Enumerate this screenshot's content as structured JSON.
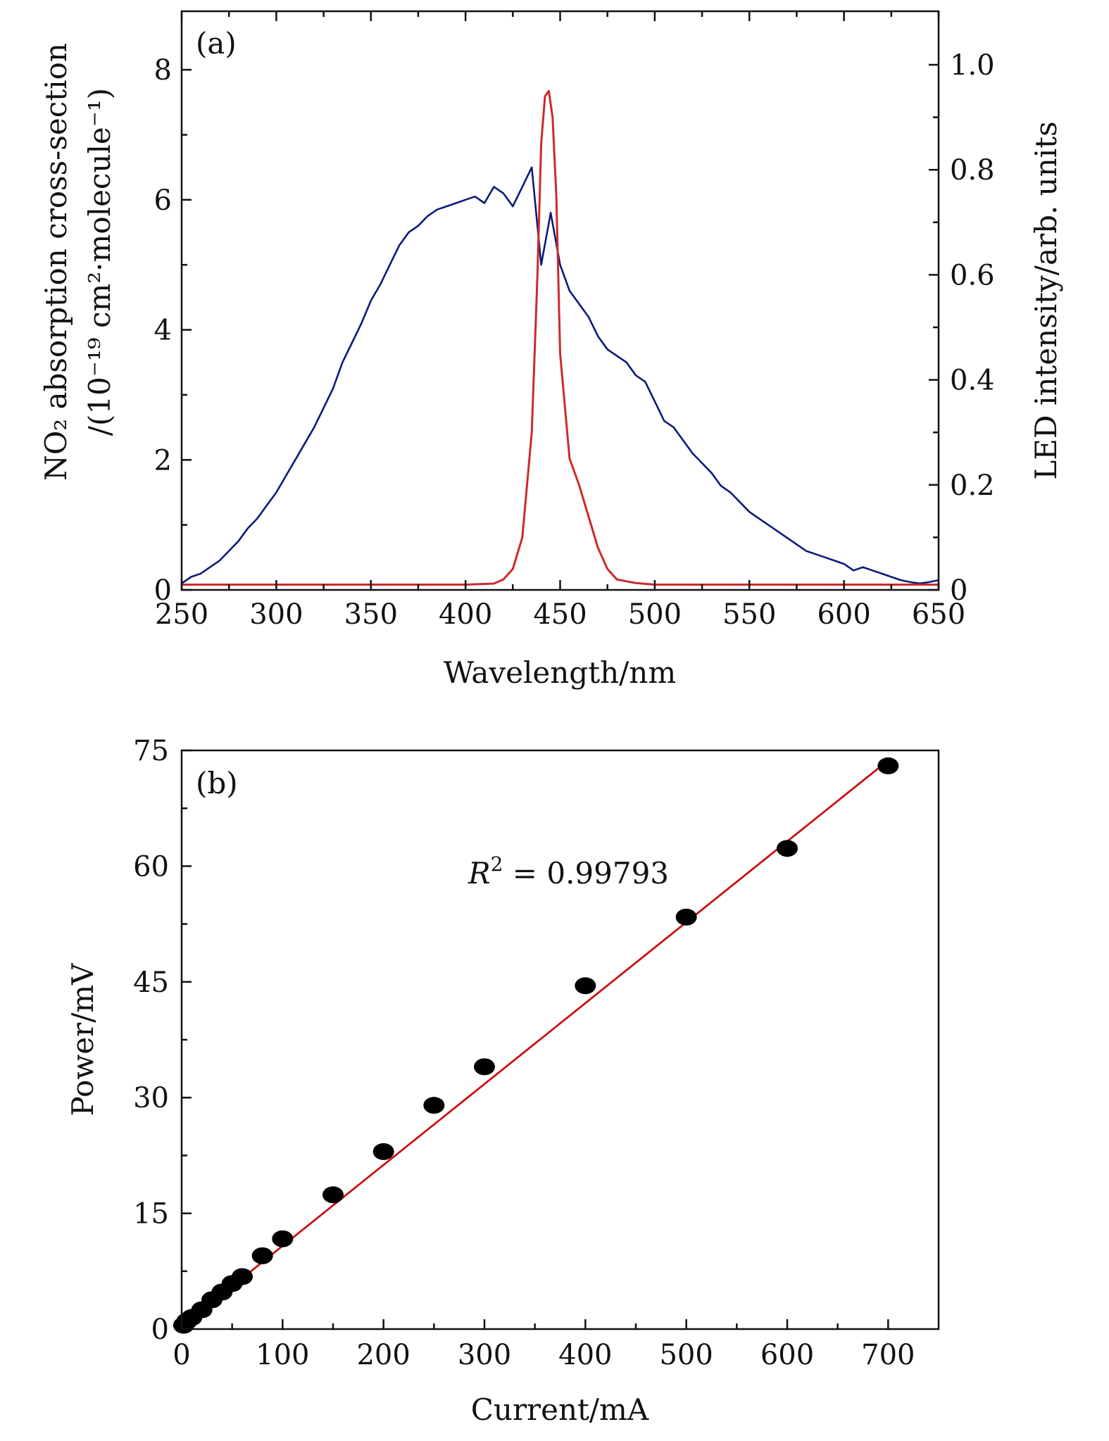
{
  "colors": {
    "absorption": "#0c1a7a",
    "led": "#cc2a2a",
    "fit": "#cc1111",
    "points": "#000000",
    "axes": "#111111"
  },
  "chart_data": [
    {
      "panel_label": "(a)",
      "type": "line",
      "xlabel": "Wavelength/nm",
      "ylabel_line1": "NO₂ absorption cross-section",
      "ylabel_line2": "/(10⁻¹⁹ cm²·molecule⁻¹)",
      "y2label": "LED intensity/arb. units",
      "xlim": [
        250,
        650
      ],
      "ylim": [
        0,
        8.9
      ],
      "y2lim": [
        0,
        1.0
      ],
      "xticks": [
        250,
        300,
        350,
        400,
        450,
        500,
        550,
        600,
        650
      ],
      "yticks": [
        0,
        2,
        4,
        6,
        8
      ],
      "y2ticks": [
        0,
        0.2,
        0.4,
        0.6,
        0.8,
        1.0
      ],
      "ytick_labels": [
        "0",
        "2",
        "4",
        "6",
        "8"
      ],
      "y2tick_labels": [
        "0",
        "0.2",
        "0.4",
        "0.6",
        "0.8",
        "1.0"
      ],
      "xtick_labels": [
        "250",
        "300",
        "350",
        "400",
        "450",
        "500",
        "550",
        "600",
        "650"
      ],
      "series": [
        {
          "axis": "left",
          "x": [
            250,
            255,
            260,
            265,
            270,
            275,
            280,
            285,
            290,
            295,
            300,
            305,
            310,
            315,
            320,
            325,
            330,
            335,
            340,
            345,
            350,
            355,
            360,
            365,
            370,
            375,
            380,
            385,
            390,
            395,
            400,
            405,
            410,
            415,
            420,
            425,
            430,
            435,
            440,
            445,
            450,
            455,
            460,
            465,
            470,
            475,
            480,
            485,
            490,
            495,
            500,
            505,
            510,
            515,
            520,
            525,
            530,
            535,
            540,
            545,
            550,
            555,
            560,
            565,
            570,
            575,
            580,
            585,
            590,
            595,
            600,
            605,
            610,
            615,
            620,
            625,
            630,
            635,
            640,
            645,
            650
          ],
          "y": [
            0.1,
            0.2,
            0.25,
            0.35,
            0.45,
            0.6,
            0.75,
            0.95,
            1.1,
            1.3,
            1.5,
            1.75,
            2.0,
            2.25,
            2.5,
            2.8,
            3.1,
            3.5,
            3.8,
            4.1,
            4.45,
            4.7,
            5.0,
            5.3,
            5.5,
            5.6,
            5.75,
            5.85,
            5.9,
            5.95,
            6.0,
            6.05,
            5.95,
            6.2,
            6.1,
            5.9,
            6.2,
            6.5,
            5.0,
            5.8,
            5.0,
            4.6,
            4.4,
            4.2,
            3.9,
            3.7,
            3.6,
            3.5,
            3.3,
            3.2,
            2.9,
            2.6,
            2.5,
            2.3,
            2.1,
            1.95,
            1.8,
            1.6,
            1.5,
            1.35,
            1.2,
            1.1,
            1.0,
            0.9,
            0.8,
            0.7,
            0.6,
            0.55,
            0.5,
            0.45,
            0.4,
            0.3,
            0.35,
            0.3,
            0.25,
            0.2,
            0.15,
            0.12,
            0.1,
            0.12,
            0.15
          ]
        },
        {
          "axis": "right",
          "x": [
            250,
            300,
            350,
            400,
            415,
            420,
            425,
            430,
            435,
            438,
            440,
            442,
            444,
            446,
            448,
            450,
            455,
            460,
            465,
            470,
            475,
            480,
            490,
            500,
            550,
            600,
            650
          ],
          "y": [
            0.01,
            0.01,
            0.01,
            0.01,
            0.012,
            0.02,
            0.04,
            0.1,
            0.3,
            0.6,
            0.85,
            0.94,
            0.95,
            0.9,
            0.75,
            0.45,
            0.25,
            0.2,
            0.14,
            0.08,
            0.04,
            0.02,
            0.013,
            0.01,
            0.01,
            0.01,
            0.01
          ]
        }
      ]
    },
    {
      "panel_label": "(b)",
      "type": "scatter",
      "xlabel": "Current/mA",
      "ylabel": "Power/mV",
      "xlim": [
        0,
        750
      ],
      "ylim": [
        0,
        75
      ],
      "xticks": [
        0,
        100,
        200,
        300,
        400,
        500,
        600,
        700
      ],
      "yticks": [
        0,
        15,
        30,
        45,
        60,
        75
      ],
      "xtick_labels": [
        "0",
        "100",
        "200",
        "300",
        "400",
        "500",
        "600",
        "700"
      ],
      "ytick_labels": [
        "0",
        "15",
        "30",
        "45",
        "60",
        "75"
      ],
      "annotation_prefix": "R",
      "annotation_sup": "2",
      "annotation_value": " = 0.99793",
      "points": {
        "x": [
          2,
          5,
          10,
          20,
          30,
          40,
          50,
          60,
          80,
          100,
          150,
          200,
          250,
          300,
          400,
          500,
          600,
          700
        ],
        "y": [
          0.5,
          1.0,
          1.5,
          2.5,
          3.8,
          4.8,
          5.9,
          6.8,
          9.5,
          11.7,
          17.4,
          23.0,
          29.0,
          34.0,
          44.5,
          53.4,
          62.3,
          73.0
        ]
      },
      "fit_line": {
        "x": [
          0,
          700
        ],
        "y": [
          0.3,
          73.7
        ]
      }
    }
  ]
}
